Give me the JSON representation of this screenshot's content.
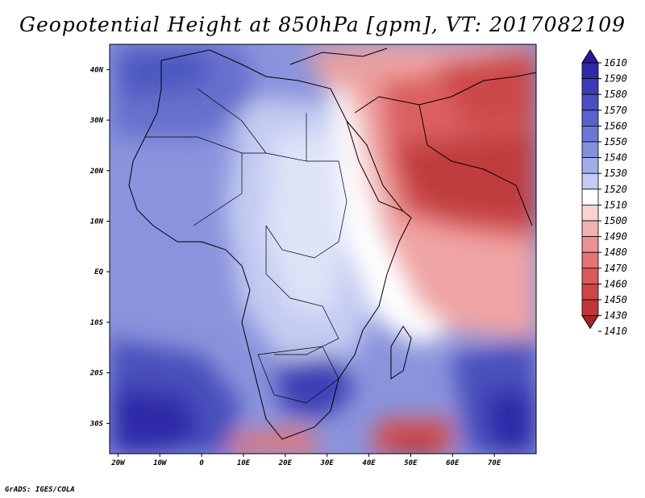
{
  "title": "Geopotential Height at 850hPa [gpm], VT: 2017082109",
  "credit": "GrADS: IGES/COLA",
  "map": {
    "lon_ticks": [
      "20W",
      "10W",
      "0",
      "10E",
      "20E",
      "30E",
      "40E",
      "50E",
      "60E",
      "70E"
    ],
    "lat_ticks": [
      "40N",
      "30N",
      "20N",
      "10N",
      "EQ",
      "10S",
      "20S",
      "30S"
    ],
    "lon_range": [
      -22,
      80
    ],
    "lat_range": [
      -36,
      45
    ]
  },
  "colorbar": {
    "levels": [
      "1610",
      "1590",
      "1580",
      "1570",
      "1560",
      "1550",
      "1540",
      "1530",
      "1520",
      "1510",
      "1500",
      "1490",
      "1480",
      "1470",
      "1460",
      "1450",
      "1430",
      "1410"
    ],
    "colors": [
      "#241a9a",
      "#2e2aa8",
      "#3a3cb6",
      "#4a4ec2",
      "#5a62cc",
      "#6c76d6",
      "#8290de",
      "#a0aee8",
      "#c4ccf2",
      "#ffffff",
      "#fad2d2",
      "#f4b0b0",
      "#ec9090",
      "#e47474",
      "#da5a5a",
      "#ce4646",
      "#c03636",
      "#a82424"
    ]
  }
}
